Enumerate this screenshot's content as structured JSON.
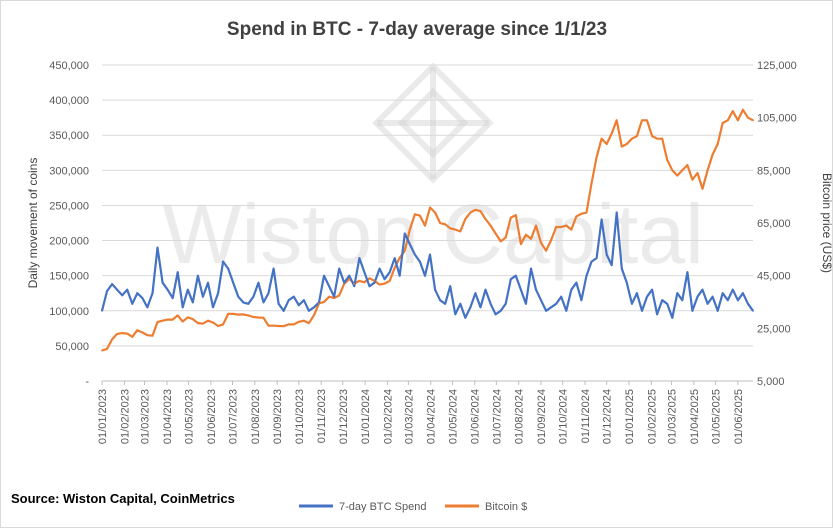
{
  "source": "Source: Wiston Capital, CoinMetrics",
  "watermark": "Wiston Capital",
  "chart_data": {
    "type": "line",
    "title": "Spend in BTC - 7-day average since 1/1/23",
    "ylabel": "Daily movement of coins",
    "y2label": "Bitcoin price (US$)",
    "ylim": [
      0,
      450000
    ],
    "y2lim": [
      5000,
      125000
    ],
    "yticks": [
      "-",
      "50,000",
      "100,000",
      "150,000",
      "200,000",
      "250,000",
      "300,000",
      "350,000",
      "400,000",
      "450,000"
    ],
    "y2ticks": [
      "5,000",
      "25,000",
      "45,000",
      "65,000",
      "85,000",
      "105,000",
      "125,000"
    ],
    "x_tick_labels": [
      "01/01/2023",
      "01/02/2023",
      "01/03/2023",
      "01/04/2023",
      "01/05/2023",
      "01/06/2023",
      "01/07/2023",
      "01/08/2023",
      "01/09/2023",
      "01/10/2023",
      "01/11/2023",
      "01/12/2023",
      "01/01/2024",
      "01/02/2024",
      "01/03/2024",
      "01/04/2024",
      "01/05/2024",
      "01/06/2024",
      "01/07/2024",
      "01/08/2024",
      "01/09/2024",
      "01/10/2024",
      "01/11/2024",
      "01/12/2024",
      "01/01/2025",
      "01/02/2025",
      "01/03/2025",
      "01/04/2025",
      "01/05/2025",
      "01/06/2025"
    ],
    "grid": true,
    "legend_position": "bottom",
    "colors": {
      "spend": "#4472C4",
      "price": "#ED7D31"
    },
    "series": [
      {
        "name": "7-day BTC Spend",
        "axis": "left",
        "x": [
          "2023-01-01",
          "2023-01-08",
          "2023-01-15",
          "2023-01-22",
          "2023-01-29",
          "2023-02-05",
          "2023-02-12",
          "2023-02-19",
          "2023-02-26",
          "2023-03-05",
          "2023-03-12",
          "2023-03-19",
          "2023-03-26",
          "2023-04-02",
          "2023-04-09",
          "2023-04-16",
          "2023-04-23",
          "2023-04-30",
          "2023-05-07",
          "2023-05-14",
          "2023-05-21",
          "2023-05-28",
          "2023-06-04",
          "2023-06-11",
          "2023-06-18",
          "2023-06-25",
          "2023-07-02",
          "2023-07-09",
          "2023-07-16",
          "2023-07-23",
          "2023-07-30",
          "2023-08-06",
          "2023-08-13",
          "2023-08-20",
          "2023-08-27",
          "2023-09-03",
          "2023-09-10",
          "2023-09-17",
          "2023-09-24",
          "2023-10-01",
          "2023-10-08",
          "2023-10-15",
          "2023-10-22",
          "2023-10-29",
          "2023-11-05",
          "2023-11-12",
          "2023-11-19",
          "2023-11-26",
          "2023-12-03",
          "2023-12-10",
          "2023-12-17",
          "2023-12-24",
          "2023-12-31",
          "2024-01-07",
          "2024-01-14",
          "2024-01-21",
          "2024-01-28",
          "2024-02-04",
          "2024-02-11",
          "2024-02-18",
          "2024-02-25",
          "2024-03-03",
          "2024-03-10",
          "2024-03-17",
          "2024-03-24",
          "2024-03-31",
          "2024-04-07",
          "2024-04-14",
          "2024-04-21",
          "2024-04-28",
          "2024-05-05",
          "2024-05-12",
          "2024-05-19",
          "2024-05-26",
          "2024-06-02",
          "2024-06-09",
          "2024-06-16",
          "2024-06-23",
          "2024-06-30",
          "2024-07-07",
          "2024-07-14",
          "2024-07-21",
          "2024-07-28",
          "2024-08-04",
          "2024-08-11",
          "2024-08-18",
          "2024-08-25",
          "2024-09-01",
          "2024-09-08",
          "2024-09-15",
          "2024-09-22",
          "2024-09-29",
          "2024-10-06",
          "2024-10-13",
          "2024-10-20",
          "2024-10-27",
          "2024-11-03",
          "2024-11-10",
          "2024-11-17",
          "2024-11-24",
          "2024-12-01",
          "2024-12-08",
          "2024-12-15",
          "2024-12-22",
          "2024-12-29",
          "2025-01-05",
          "2025-01-12",
          "2025-01-19",
          "2025-01-26",
          "2025-02-02",
          "2025-02-09",
          "2025-02-16",
          "2025-02-23",
          "2025-03-02",
          "2025-03-09",
          "2025-03-16",
          "2025-03-23",
          "2025-03-30",
          "2025-04-06",
          "2025-04-13",
          "2025-04-20",
          "2025-04-27",
          "2025-05-04",
          "2025-05-11",
          "2025-05-18",
          "2025-05-25",
          "2025-06-01",
          "2025-06-08",
          "2025-06-15",
          "2025-06-22"
        ],
        "values": [
          100000,
          128000,
          138000,
          130000,
          122000,
          130000,
          110000,
          125000,
          118000,
          105000,
          125000,
          190000,
          140000,
          130000,
          118000,
          155000,
          105000,
          130000,
          112000,
          150000,
          120000,
          140000,
          105000,
          125000,
          170000,
          160000,
          140000,
          120000,
          112000,
          110000,
          120000,
          140000,
          112000,
          125000,
          160000,
          110000,
          100000,
          115000,
          120000,
          108000,
          115000,
          100000,
          105000,
          112000,
          150000,
          135000,
          120000,
          160000,
          140000,
          150000,
          135000,
          175000,
          155000,
          135000,
          140000,
          160000,
          145000,
          155000,
          175000,
          150000,
          210000,
          195000,
          180000,
          170000,
          150000,
          180000,
          130000,
          115000,
          110000,
          135000,
          95000,
          110000,
          90000,
          105000,
          125000,
          105000,
          130000,
          110000,
          95000,
          100000,
          110000,
          145000,
          150000,
          130000,
          110000,
          160000,
          130000,
          115000,
          100000,
          105000,
          110000,
          120000,
          100000,
          130000,
          140000,
          115000,
          150000,
          170000,
          175000,
          230000,
          180000,
          165000,
          240000,
          160000,
          140000,
          110000,
          125000,
          100000,
          120000,
          130000,
          95000,
          115000,
          110000,
          90000,
          125000,
          115000,
          155000,
          100000,
          120000,
          130000,
          110000,
          120000,
          100000,
          125000,
          115000,
          130000,
          115000,
          125000,
          110000,
          100000
        ],
        "note_values_unit": "coins"
      },
      {
        "name": "Bitcoin $",
        "axis": "right",
        "x": [
          "2023-01-01",
          "2023-01-08",
          "2023-01-15",
          "2023-01-22",
          "2023-01-29",
          "2023-02-05",
          "2023-02-12",
          "2023-02-19",
          "2023-02-26",
          "2023-03-05",
          "2023-03-12",
          "2023-03-19",
          "2023-03-26",
          "2023-04-02",
          "2023-04-09",
          "2023-04-16",
          "2023-04-23",
          "2023-04-30",
          "2023-05-07",
          "2023-05-14",
          "2023-05-21",
          "2023-05-28",
          "2023-06-04",
          "2023-06-11",
          "2023-06-18",
          "2023-06-25",
          "2023-07-02",
          "2023-07-09",
          "2023-07-16",
          "2023-07-23",
          "2023-07-30",
          "2023-08-06",
          "2023-08-13",
          "2023-08-20",
          "2023-08-27",
          "2023-09-03",
          "2023-09-10",
          "2023-09-17",
          "2023-09-24",
          "2023-10-01",
          "2023-10-08",
          "2023-10-15",
          "2023-10-22",
          "2023-10-29",
          "2023-11-05",
          "2023-11-12",
          "2023-11-19",
          "2023-11-26",
          "2023-12-03",
          "2023-12-10",
          "2023-12-17",
          "2023-12-24",
          "2023-12-31",
          "2024-01-07",
          "2024-01-14",
          "2024-01-21",
          "2024-01-28",
          "2024-02-04",
          "2024-02-11",
          "2024-02-18",
          "2024-02-25",
          "2024-03-03",
          "2024-03-10",
          "2024-03-17",
          "2024-03-24",
          "2024-03-31",
          "2024-04-07",
          "2024-04-14",
          "2024-04-21",
          "2024-04-28",
          "2024-05-05",
          "2024-05-12",
          "2024-05-19",
          "2024-05-26",
          "2024-06-02",
          "2024-06-09",
          "2024-06-16",
          "2024-06-23",
          "2024-06-30",
          "2024-07-07",
          "2024-07-14",
          "2024-07-21",
          "2024-07-28",
          "2024-08-04",
          "2024-08-11",
          "2024-08-18",
          "2024-08-25",
          "2024-09-01",
          "2024-09-08",
          "2024-09-15",
          "2024-09-22",
          "2024-09-29",
          "2024-10-06",
          "2024-10-13",
          "2024-10-20",
          "2024-10-27",
          "2024-11-03",
          "2024-11-10",
          "2024-11-17",
          "2024-11-24",
          "2024-12-01",
          "2024-12-08",
          "2024-12-15",
          "2024-12-22",
          "2024-12-29",
          "2025-01-05",
          "2025-01-12",
          "2025-01-19",
          "2025-01-26",
          "2025-02-02",
          "2025-02-09",
          "2025-02-16",
          "2025-02-23",
          "2025-03-02",
          "2025-03-09",
          "2025-03-16",
          "2025-03-23",
          "2025-03-30",
          "2025-04-06",
          "2025-04-13",
          "2025-04-20",
          "2025-04-27",
          "2025-05-04",
          "2025-05-11",
          "2025-05-18",
          "2025-05-25",
          "2025-06-01",
          "2025-06-08",
          "2025-06-15",
          "2025-06-22"
        ],
        "values": [
          16600,
          17200,
          20800,
          22900,
          23200,
          23000,
          21800,
          24300,
          23400,
          22400,
          22200,
          27400,
          27900,
          28300,
          28300,
          29900,
          27600,
          29200,
          28500,
          27000,
          26800,
          27900,
          27200,
          25900,
          26500,
          30500,
          30500,
          30200,
          30300,
          29900,
          29300,
          29100,
          29000,
          26000,
          26000,
          25900,
          25800,
          26500,
          26500,
          27500,
          27900,
          27000,
          30000,
          34500,
          35000,
          37000,
          36500,
          37500,
          41900,
          43800,
          42000,
          43000,
          42500,
          44000,
          43000,
          41600,
          42000,
          43000,
          48000,
          51800,
          54500,
          62500,
          68300,
          67800,
          64000,
          70900,
          69000,
          65000,
          64500,
          63000,
          62500,
          61800,
          66500,
          69000,
          70000,
          69500,
          66500,
          64000,
          61000,
          58000,
          59500,
          67000,
          68000,
          57000,
          60500,
          59000,
          64000,
          57500,
          54500,
          58500,
          63500,
          63500,
          64000,
          62500,
          67500,
          68500,
          69000,
          80000,
          90000,
          97000,
          95000,
          99000,
          104000,
          94000,
          95000,
          97000,
          98000,
          104000,
          104000,
          98000,
          97000,
          97000,
          89000,
          85000,
          83000,
          85000,
          87000,
          81500,
          84000,
          78000,
          85000,
          91000,
          95000,
          103000,
          104000,
          107500,
          104000,
          108000,
          105000,
          104000
        ],
        "note_values_unit": "USD"
      }
    ]
  }
}
